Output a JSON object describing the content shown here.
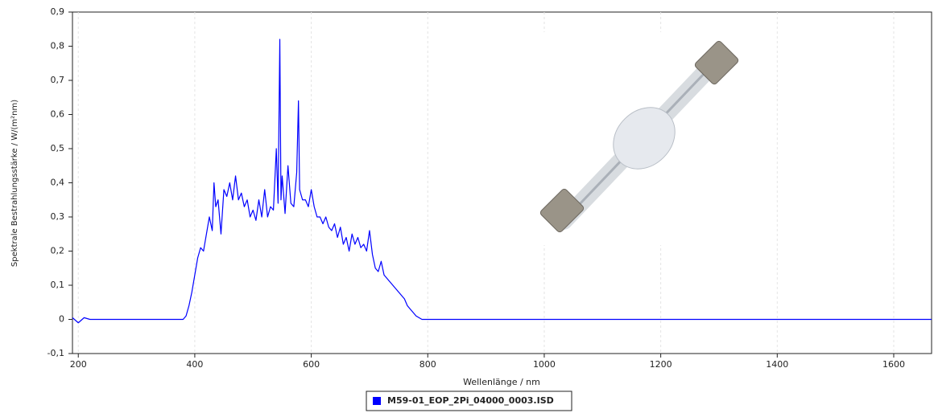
{
  "chart_data": {
    "type": "line",
    "x_label": "Wellenlänge / nm",
    "y_label": "Spektrale Bestrahlungsstärke / W/(m²nm)",
    "x": [
      190,
      200,
      210,
      220,
      230,
      240,
      300,
      380,
      385,
      390,
      395,
      400,
      405,
      410,
      415,
      420,
      425,
      430,
      433,
      436,
      440,
      445,
      450,
      455,
      460,
      465,
      470,
      475,
      480,
      485,
      490,
      495,
      500,
      505,
      510,
      515,
      520,
      525,
      530,
      535,
      540,
      543,
      546,
      548,
      550,
      555,
      560,
      565,
      570,
      575,
      578,
      580,
      585,
      590,
      595,
      600,
      605,
      610,
      615,
      620,
      625,
      630,
      635,
      640,
      645,
      650,
      655,
      660,
      665,
      670,
      675,
      680,
      685,
      690,
      695,
      700,
      705,
      710,
      715,
      720,
      725,
      730,
      735,
      740,
      745,
      750,
      755,
      760,
      765,
      770,
      775,
      780,
      785,
      790,
      795,
      800,
      900,
      1665
    ],
    "series": [
      {
        "name": "M59-01_EOP_2Pi_04000_0003.ISD",
        "color": "#0000ff",
        "values": [
          0.005,
          -0.01,
          0.005,
          0,
          0,
          0,
          0,
          0,
          0.01,
          0.04,
          0.08,
          0.13,
          0.18,
          0.21,
          0.2,
          0.25,
          0.3,
          0.26,
          0.4,
          0.33,
          0.35,
          0.25,
          0.38,
          0.36,
          0.4,
          0.35,
          0.42,
          0.35,
          0.37,
          0.33,
          0.35,
          0.3,
          0.32,
          0.29,
          0.35,
          0.3,
          0.38,
          0.3,
          0.33,
          0.32,
          0.5,
          0.34,
          0.82,
          0.35,
          0.42,
          0.31,
          0.45,
          0.34,
          0.33,
          0.43,
          0.64,
          0.38,
          0.35,
          0.35,
          0.33,
          0.38,
          0.33,
          0.3,
          0.3,
          0.28,
          0.3,
          0.27,
          0.26,
          0.28,
          0.24,
          0.27,
          0.22,
          0.24,
          0.2,
          0.25,
          0.22,
          0.24,
          0.21,
          0.22,
          0.2,
          0.26,
          0.19,
          0.15,
          0.14,
          0.17,
          0.13,
          0.12,
          0.11,
          0.1,
          0.09,
          0.08,
          0.07,
          0.06,
          0.04,
          0.03,
          0.02,
          0.01,
          0.005,
          0,
          0,
          0,
          0,
          0
        ]
      }
    ],
    "xlim": [
      190,
      1665
    ],
    "xticks": [
      200,
      400,
      600,
      800,
      1000,
      1200,
      1400,
      1600
    ],
    "ylim": [
      -0.1,
      0.9
    ],
    "yticks": [
      {
        "value": -0.1,
        "label": "-0,1"
      },
      0,
      {
        "value": 0.1,
        "label": "0,1"
      },
      {
        "value": 0.2,
        "label": "0,2"
      },
      {
        "value": 0.3,
        "label": "0,3"
      },
      {
        "value": 0.4,
        "label": "0,4"
      },
      {
        "value": 0.5,
        "label": "0,5"
      },
      {
        "value": 0.6,
        "label": "0,6"
      },
      {
        "value": 0.7,
        "label": "0,7"
      },
      {
        "value": 0.8,
        "label": "0,8"
      },
      {
        "value": 0.9,
        "label": "0,9"
      }
    ],
    "grid": true
  }
}
